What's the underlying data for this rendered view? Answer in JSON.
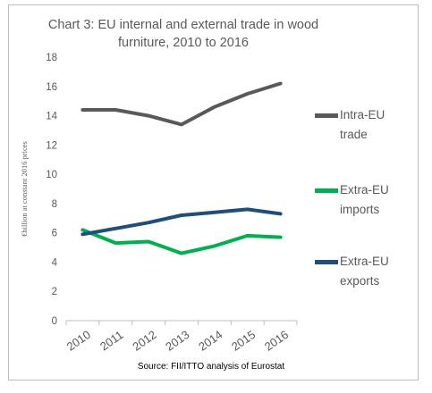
{
  "chart_data": {
    "type": "line",
    "title_line1": "Chart 3: EU internal and external trade in wood",
    "title_line2": "furniture, 2010 to 2016",
    "ylabel": "€billion at constant 2016 prices",
    "xlabel": "",
    "source": "Source: FII/ITTO analysis of Eurostat",
    "ylim": [
      0,
      18
    ],
    "yticks": [
      0,
      2,
      4,
      6,
      8,
      10,
      12,
      14,
      16,
      18
    ],
    "categories": [
      "2010",
      "2011",
      "2012",
      "2013",
      "2014",
      "2015",
      "2016"
    ],
    "legend_position": "right",
    "grid": false,
    "series": [
      {
        "name_line1": "Intra-EU",
        "name_line2": "trade",
        "color": "#595959",
        "values": [
          14.4,
          14.4,
          14.0,
          13.4,
          14.6,
          15.5,
          16.2
        ]
      },
      {
        "name_line1": "Extra-EU",
        "name_line2": "imports",
        "color": "#00b050",
        "values": [
          6.2,
          5.3,
          5.4,
          4.6,
          5.1,
          5.8,
          5.7
        ]
      },
      {
        "name_line1": "Extra-EU",
        "name_line2": "exports",
        "color": "#1f4e79",
        "values": [
          5.9,
          6.3,
          6.7,
          7.2,
          7.4,
          7.6,
          7.3
        ]
      }
    ]
  }
}
